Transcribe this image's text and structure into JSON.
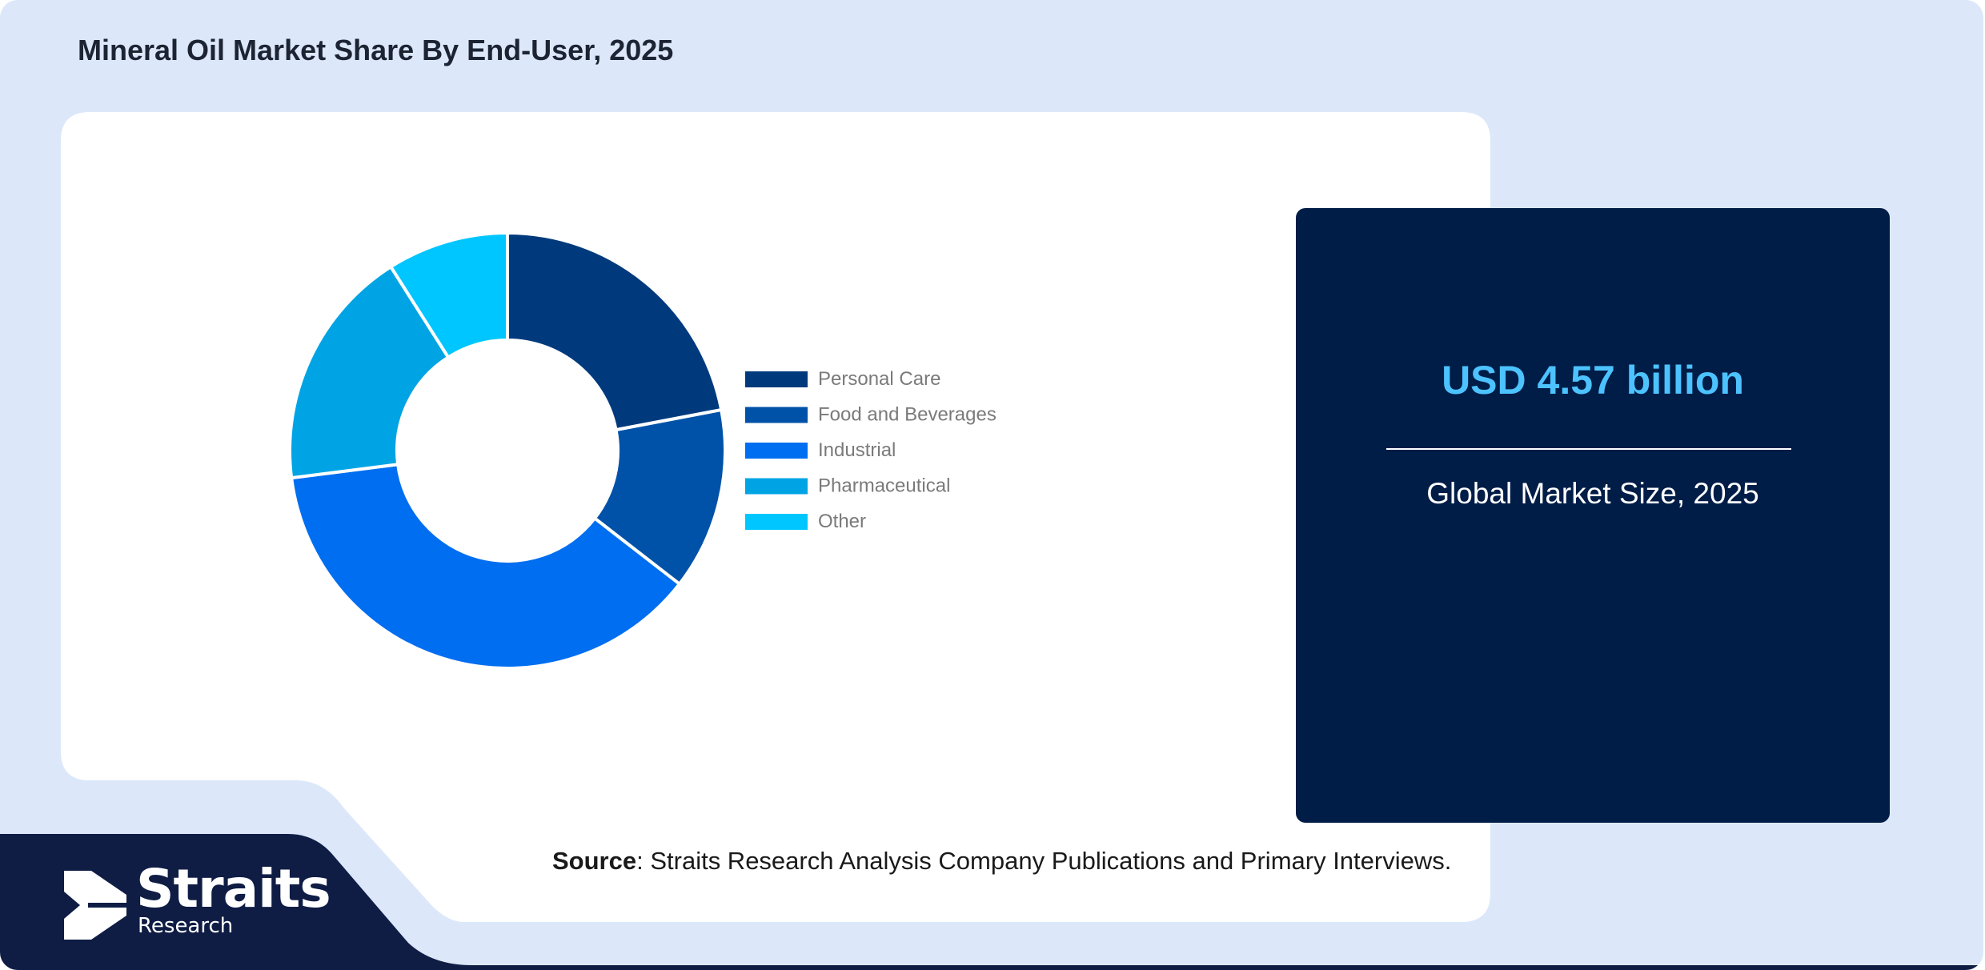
{
  "title": "Mineral Oil Market Share By End-User, 2025",
  "market": {
    "value": "USD 4.57 billion",
    "label": "Global Market Size, 2025"
  },
  "source": {
    "label": "Source",
    "text": ": Straits Research Analysis Company Publications and Primary Interviews."
  },
  "logo": {
    "name": "Straits",
    "sub": "Research"
  },
  "colors": {
    "background": "#dce8fa",
    "panel": "#ffffff",
    "navy": "#001d47",
    "accent": "#4cc2ff"
  },
  "chart_data": {
    "type": "pie",
    "style": "donut",
    "legend_position": "right",
    "categories": [
      "Personal Care",
      "Food and Beverages",
      "Industrial",
      "Pharmaceutical",
      "Other"
    ],
    "values": [
      22,
      13.5,
      37.5,
      18,
      9
    ],
    "colors": [
      "#003a7d",
      "#0052a8",
      "#006ef0",
      "#00a4e4",
      "#00c6ff"
    ]
  }
}
